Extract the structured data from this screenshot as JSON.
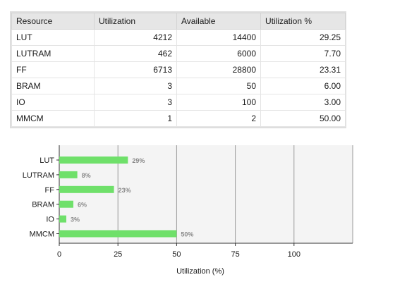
{
  "table": {
    "headers": [
      "Resource",
      "Utilization",
      "Available",
      "Utilization %"
    ],
    "rows": [
      [
        "LUT",
        "4212",
        "14400",
        "29.25"
      ],
      [
        "LUTRAM",
        "462",
        "6000",
        "7.70"
      ],
      [
        "FF",
        "6713",
        "28800",
        "23.31"
      ],
      [
        "BRAM",
        "3",
        "50",
        "6.00"
      ],
      [
        "IO",
        "3",
        "100",
        "3.00"
      ],
      [
        "MMCM",
        "1",
        "2",
        "50.00"
      ]
    ]
  },
  "chart_data": {
    "type": "bar",
    "orientation": "horizontal",
    "categories": [
      "LUT",
      "LUTRAM",
      "FF",
      "BRAM",
      "IO",
      "MMCM"
    ],
    "values": [
      29.25,
      7.7,
      23.31,
      6.0,
      3.0,
      50.0
    ],
    "data_labels": [
      "29%",
      "8%",
      "23%",
      "6%",
      "3%",
      "50%"
    ],
    "xlabel": "Utilization (%)",
    "xlim": [
      0,
      125
    ],
    "xticks": [
      0,
      25,
      50,
      75,
      100
    ],
    "tick_labels": [
      "0",
      "25",
      "50",
      "75",
      "100"
    ],
    "grid": true,
    "colors": {
      "bar": "#6fe06a",
      "plot_bg": "#f4f4f4",
      "grid": "#9a9a9a",
      "label": "#8a8a8a"
    }
  }
}
